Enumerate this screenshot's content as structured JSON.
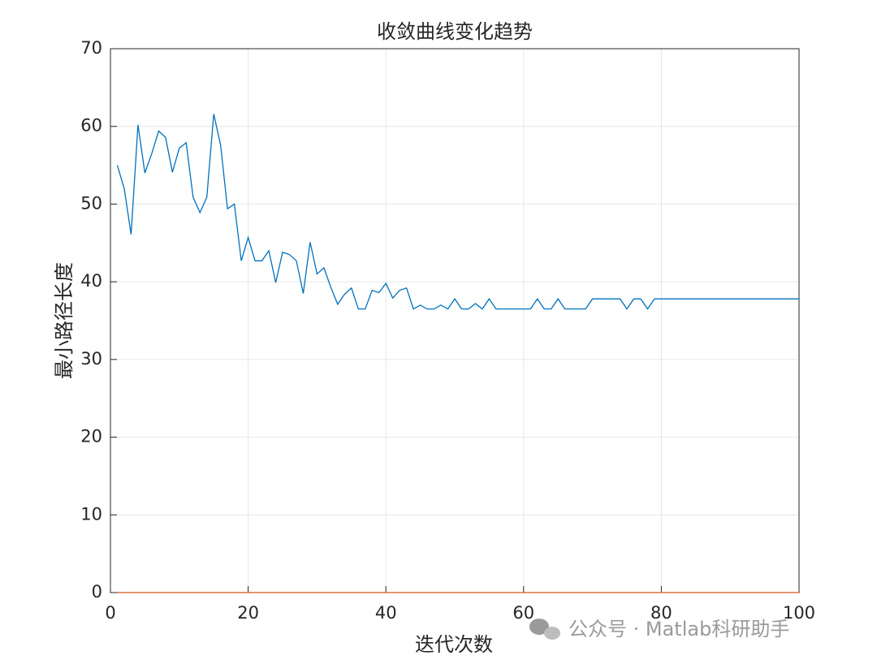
{
  "chart_data": {
    "type": "line",
    "title": "收敛曲线变化趋势",
    "x_label": "迭代次数",
    "y_label": "最小路径长度",
    "watermark": "公众号 · Matlab科研助手",
    "x": [
      1,
      2,
      3,
      4,
      5,
      6,
      7,
      8,
      9,
      10,
      11,
      12,
      13,
      14,
      15,
      16,
      17,
      18,
      19,
      20,
      21,
      22,
      23,
      24,
      25,
      26,
      27,
      28,
      29,
      30,
      31,
      32,
      33,
      34,
      35,
      36,
      37,
      38,
      39,
      40,
      41,
      42,
      43,
      44,
      45,
      46,
      47,
      48,
      49,
      50,
      51,
      52,
      53,
      54,
      55,
      56,
      57,
      58,
      59,
      60,
      61,
      62,
      63,
      64,
      65,
      66,
      67,
      68,
      69,
      70,
      71,
      72,
      73,
      74,
      75,
      76,
      77,
      78,
      79,
      80,
      81,
      82,
      83,
      84,
      85,
      86,
      87,
      88,
      89,
      90,
      91,
      92,
      93,
      94,
      95,
      96,
      97,
      98,
      99,
      100
    ],
    "series": [
      {
        "color": "#0072bd",
        "values": [
          55,
          52,
          46.1,
          60.2,
          54,
          56.5,
          59.4,
          58.6,
          54.1,
          57.2,
          57.9,
          50.9,
          48.9,
          50.9,
          61.6,
          57.6,
          49.4,
          50,
          42.7,
          45.7,
          42.7,
          42.7,
          44,
          39.9,
          43.8,
          43.5,
          42.7,
          38.5,
          45.1,
          41,
          41.8,
          39.3,
          37.1,
          38.4,
          39.2,
          36.5,
          36.5,
          38.9,
          38.6,
          39.8,
          37.9,
          38.9,
          39.2,
          36.5,
          37,
          36.5,
          36.5,
          37,
          36.5,
          37.8,
          36.5,
          36.5,
          37.2,
          36.5,
          37.8,
          36.5,
          36.5,
          36.5,
          36.5,
          36.5,
          36.5,
          37.8,
          36.5,
          36.5,
          37.8,
          36.5,
          36.5,
          36.5,
          36.5,
          37.8,
          37.8,
          37.8,
          37.8,
          37.8,
          36.5,
          37.8,
          37.8,
          36.5,
          37.8,
          37.8,
          37.8,
          37.8,
          37.8,
          37.8,
          37.8,
          37.8,
          37.8,
          37.8,
          37.8,
          37.8,
          37.8,
          37.8,
          37.8,
          37.8,
          37.8,
          37.8,
          37.8,
          37.8,
          37.8,
          37.8
        ]
      },
      {
        "color": "#d95319",
        "values": [
          0,
          0,
          0,
          0,
          0,
          0,
          0,
          0,
          0,
          0,
          0,
          0,
          0,
          0,
          0,
          0,
          0,
          0,
          0,
          0,
          0,
          0,
          0,
          0,
          0,
          0,
          0,
          0,
          0,
          0,
          0,
          0,
          0,
          0,
          0,
          0,
          0,
          0,
          0,
          0,
          0,
          0,
          0,
          0,
          0,
          0,
          0,
          0,
          0,
          0,
          0,
          0,
          0,
          0,
          0,
          0,
          0,
          0,
          0,
          0,
          0,
          0,
          0,
          0,
          0,
          0,
          0,
          0,
          0,
          0,
          0,
          0,
          0,
          0,
          0,
          0,
          0,
          0,
          0,
          0,
          0,
          0,
          0,
          0,
          0,
          0,
          0,
          0,
          0,
          0,
          0,
          0,
          0,
          0,
          0,
          0,
          0,
          0,
          0,
          0
        ]
      }
    ],
    "xlim": [
      0,
      100
    ],
    "xticks": [
      0,
      20,
      40,
      60,
      80,
      100
    ],
    "ylim": [
      0,
      70
    ],
    "yticks": [
      0,
      10,
      20,
      30,
      40,
      50,
      60,
      70
    ],
    "grid": true
  }
}
